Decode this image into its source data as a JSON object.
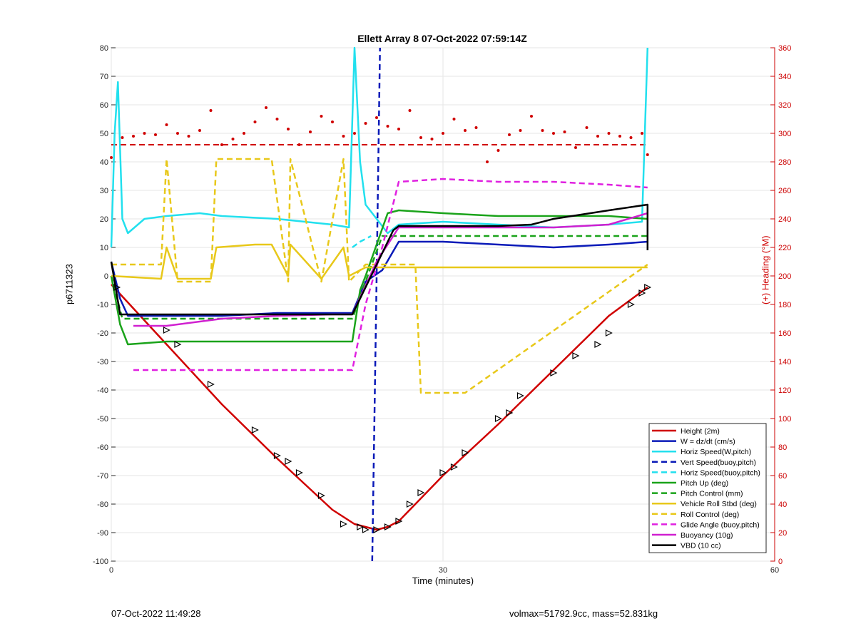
{
  "chart_data": {
    "type": "line",
    "title": "Ellett Array 8 07-Oct-2022 07:59:14Z",
    "xlabel": "Time (minutes)",
    "ylabel": "p6711323",
    "y2label": "(+) Heading (°M)",
    "xlim": [
      0,
      60
    ],
    "ylim": [
      -100,
      80
    ],
    "y2lim": [
      0,
      360
    ],
    "xticks": [
      0,
      30,
      60
    ],
    "yticks": [
      -100,
      -90,
      -80,
      -70,
      -60,
      -50,
      -40,
      -30,
      -20,
      -10,
      0,
      10,
      20,
      30,
      40,
      50,
      60,
      70,
      80
    ],
    "y2ticks": [
      0,
      20,
      40,
      60,
      80,
      100,
      120,
      140,
      160,
      180,
      200,
      220,
      240,
      260,
      280,
      300,
      320,
      340,
      360
    ],
    "grid": true,
    "legend_position": "bottom-right",
    "colors": {
      "axis2": "#cc0000"
    },
    "series": [
      {
        "name": "Height (2m)",
        "color": "#d00000",
        "style": "solid",
        "x": [
          0,
          5,
          10,
          15,
          20,
          22,
          23,
          24,
          25,
          26,
          30,
          35,
          40,
          45,
          48.5
        ],
        "y": [
          -3,
          -24,
          -45,
          -64,
          -82,
          -87,
          -88,
          -89,
          -88,
          -86,
          -70,
          -52,
          -33,
          -14,
          -4
        ]
      },
      {
        "name": "W = dz/dt (cm/s)",
        "color": "#0a1ab8",
        "style": "solid",
        "x": [
          0,
          0.8,
          1.5,
          5,
          10,
          15,
          20,
          21.8,
          23,
          24.5,
          26,
          30,
          35,
          40,
          45,
          48.5
        ],
        "y": [
          5,
          -8,
          -14,
          -14,
          -14,
          -13,
          -13,
          -13,
          -2,
          2,
          12,
          12,
          11,
          10,
          11,
          12
        ]
      },
      {
        "name": "Horiz Speed(W,pitch)",
        "color": "#22e0ee",
        "style": "solid",
        "x": [
          0,
          0.3,
          0.6,
          1,
          1.5,
          3,
          5,
          8,
          10,
          15,
          20,
          21.5,
          22,
          22.5,
          23,
          24,
          25,
          26,
          30,
          35,
          40,
          45,
          48,
          48.5
        ],
        "y": [
          10,
          50,
          68,
          20,
          15,
          20,
          21,
          22,
          21,
          20,
          18,
          17,
          80,
          40,
          25,
          20,
          15,
          18,
          19,
          18,
          17,
          18,
          19,
          80
        ]
      },
      {
        "name": "Vert Speed(buoy,pitch)",
        "color": "#0a1ab8",
        "style": "dashed",
        "x": [
          23.6,
          24.0,
          24.3
        ],
        "y": [
          -100,
          0,
          80
        ]
      },
      {
        "name": "Horiz Speed(buoy,pitch)",
        "color": "#22e0ee",
        "style": "dashed",
        "x": [
          21.8,
          22.5,
          23.5
        ],
        "y": [
          10,
          12,
          14
        ]
      },
      {
        "name": "Pitch Up (deg)",
        "color": "#1aa31a",
        "style": "solid",
        "x": [
          0,
          0.8,
          1.5,
          5,
          10,
          15,
          20,
          21.8,
          22.5,
          23,
          25,
          26,
          30,
          35,
          40,
          45,
          48.5
        ],
        "y": [
          0,
          -17,
          -24,
          -23,
          -23,
          -23,
          -23,
          -23,
          -5,
          0,
          22,
          23,
          22,
          21,
          21,
          21,
          20
        ]
      },
      {
        "name": "Pitch Control (mm)",
        "color": "#1aa31a",
        "style": "dashed",
        "x": [
          0,
          1,
          21.8,
          23,
          24.5,
          48.5
        ],
        "y": [
          0,
          -15,
          -15,
          -2,
          14,
          14
        ]
      },
      {
        "name": "Vehicle Roll Stbd (deg)",
        "color": "#e8c81a",
        "style": "solid",
        "x": [
          0,
          4.5,
          5,
          6,
          9,
          9.5,
          13,
          14.5,
          16,
          16.2,
          19,
          21,
          21.5,
          23,
          25,
          48.5
        ],
        "y": [
          0,
          -1,
          10,
          -1,
          -1,
          10,
          11,
          11,
          0,
          11,
          -1,
          10,
          0,
          3,
          3,
          3
        ]
      },
      {
        "name": "Roll Control (deg)",
        "color": "#e8c81a",
        "style": "dashed",
        "x": [
          0,
          4.5,
          5,
          6,
          9,
          9.5,
          13,
          14.5,
          16,
          16.2,
          19,
          21,
          21.5,
          23,
          25,
          27.5,
          28,
          30,
          32,
          48.5
        ],
        "y": [
          4,
          4,
          41,
          -2,
          -2,
          41,
          41,
          41,
          -2,
          41,
          -2,
          41,
          -2,
          4,
          4,
          4,
          -41,
          -41,
          -41,
          4
        ]
      },
      {
        "name": "Glide Angle (buoy,pitch)",
        "color": "#e020e0",
        "style": "dashed",
        "x": [
          2,
          5,
          10,
          15,
          20,
          21.8,
          23,
          24.5,
          26,
          30,
          35,
          40,
          45,
          48.5
        ],
        "y": [
          -33,
          -33,
          -33,
          -33,
          -33,
          -33,
          -10,
          10,
          33,
          34,
          33,
          33,
          32,
          31
        ]
      },
      {
        "name": "Buoyancy (10g)",
        "color": "#d020d0",
        "style": "solid",
        "x": [
          2,
          5,
          10,
          15,
          20,
          21.8,
          24,
          26,
          30,
          35,
          40,
          45,
          48.5
        ],
        "y": [
          -17.5,
          -17.5,
          -15,
          -14,
          -13.5,
          -13.5,
          5,
          17,
          17,
          17,
          17,
          18,
          22
        ]
      },
      {
        "name": "VBD (10 cc)",
        "color": "#000000",
        "style": "solid",
        "x": [
          0,
          0.8,
          5,
          10,
          15,
          20,
          21.8,
          23,
          24.5,
          25.5,
          26,
          30,
          35,
          38,
          40,
          45,
          48.5,
          48.5
        ],
        "y": [
          5,
          -13.5,
          -13.5,
          -13.5,
          -13.5,
          -13.5,
          -13.5,
          -4,
          8,
          16,
          17.5,
          17.5,
          17.5,
          18,
          20,
          23,
          25,
          9
        ]
      }
    ],
    "heading": {
      "name": "Heading",
      "color": "#d00000",
      "dots": {
        "x": [
          0,
          1,
          2,
          3,
          4,
          5,
          6,
          7,
          8,
          9,
          10,
          11,
          12,
          13,
          14,
          15,
          16,
          17,
          18,
          19,
          20,
          21,
          22,
          23,
          24,
          25,
          26,
          27,
          28,
          29,
          30,
          31,
          32,
          33,
          34,
          35,
          36,
          37,
          38,
          39,
          40,
          41,
          42,
          43,
          44,
          45,
          46,
          47,
          48,
          48.5
        ],
        "y": [
          283,
          297,
          298,
          300,
          299,
          306,
          300,
          298,
          302,
          316,
          292,
          296,
          300,
          308,
          318,
          310,
          303,
          292,
          301,
          312,
          308,
          298,
          300,
          307,
          311,
          305,
          303,
          316,
          297,
          296,
          300,
          310,
          302,
          304,
          280,
          288,
          299,
          302,
          312,
          302,
          300,
          301,
          290,
          304,
          298,
          300,
          298,
          297,
          300,
          285
        ]
      },
      "mean_line": {
        "x": [
          0,
          48.5
        ],
        "y": [
          292,
          292
        ]
      }
    },
    "markers": {
      "x": [
        0.5,
        5,
        6,
        9,
        13,
        15,
        16,
        17,
        19,
        21,
        22.5,
        23,
        24,
        25,
        26,
        27,
        28,
        30,
        31,
        32,
        35,
        36,
        37,
        40,
        42,
        44,
        45,
        47,
        48,
        48.5
      ],
      "y": [
        -4,
        -19,
        -24,
        -38,
        -54,
        -63,
        -65,
        -69,
        -77,
        -87,
        -88,
        -89,
        -89,
        -88,
        -86,
        -80,
        -76,
        -69,
        -67,
        -62,
        -50,
        -48,
        -42,
        -34,
        -28,
        -24,
        -20,
        -10,
        -6,
        -4
      ]
    }
  },
  "footer": {
    "left": "07-Oct-2022 11:49:28",
    "right": "volmax=51792.9cc, mass=52.831kg"
  }
}
